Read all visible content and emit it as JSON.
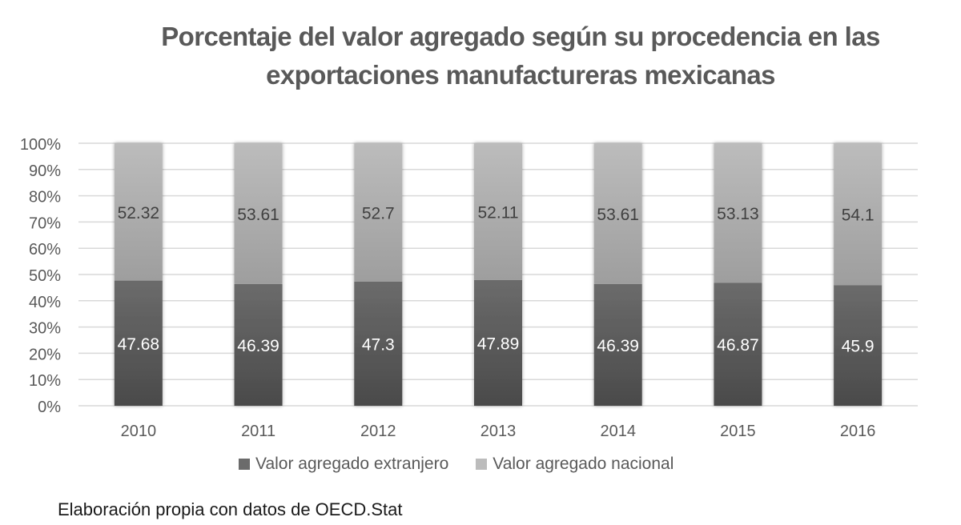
{
  "colors": {
    "extranjero_top": "#6b6b6b",
    "extranjero_bottom": "#4a4a4a",
    "nacional_top": "#bcbcbc",
    "nacional_bottom": "#9e9e9e",
    "grid": "#d9d9d9",
    "axis_text": "#595959",
    "label_dark": "#404040",
    "label_light": "#ffffff"
  },
  "footer": "Elaboración propia con datos de OECD.Stat",
  "chart_data": {
    "type": "bar",
    "stacked": "percent",
    "title": "Porcentaje del valor agregado según su procedencia en las exportaciones manufactureras mexicanas",
    "title_lines": [
      "Porcentaje del valor agregado según su procedencia en las",
      "exportaciones manufactureras mexicanas"
    ],
    "xlabel": "",
    "ylabel": "",
    "categories": [
      "2010",
      "2011",
      "2012",
      "2013",
      "2014",
      "2015",
      "2016"
    ],
    "series": [
      {
        "name": "Valor agregado extranjero",
        "values": [
          47.68,
          46.39,
          47.3,
          47.89,
          46.39,
          46.87,
          45.9
        ],
        "labels": [
          "47.68",
          "46.39",
          "47.3",
          "47.89",
          "46.39",
          "46.87",
          "45.9"
        ]
      },
      {
        "name": "Valor agregado nacional",
        "values": [
          52.32,
          53.61,
          52.7,
          52.11,
          53.61,
          53.13,
          54.1
        ],
        "labels": [
          "52.32",
          "53.61",
          "52.7",
          "52.11",
          "53.61",
          "53.13",
          "54.1"
        ]
      }
    ],
    "ylim": [
      0,
      100
    ],
    "yticks": [
      0,
      10,
      20,
      30,
      40,
      50,
      60,
      70,
      80,
      90,
      100
    ],
    "ytick_labels": [
      "0%",
      "10%",
      "20%",
      "30%",
      "40%",
      "50%",
      "60%",
      "70%",
      "80%",
      "90%",
      "100%"
    ],
    "grid": true,
    "legend": "bottom"
  }
}
